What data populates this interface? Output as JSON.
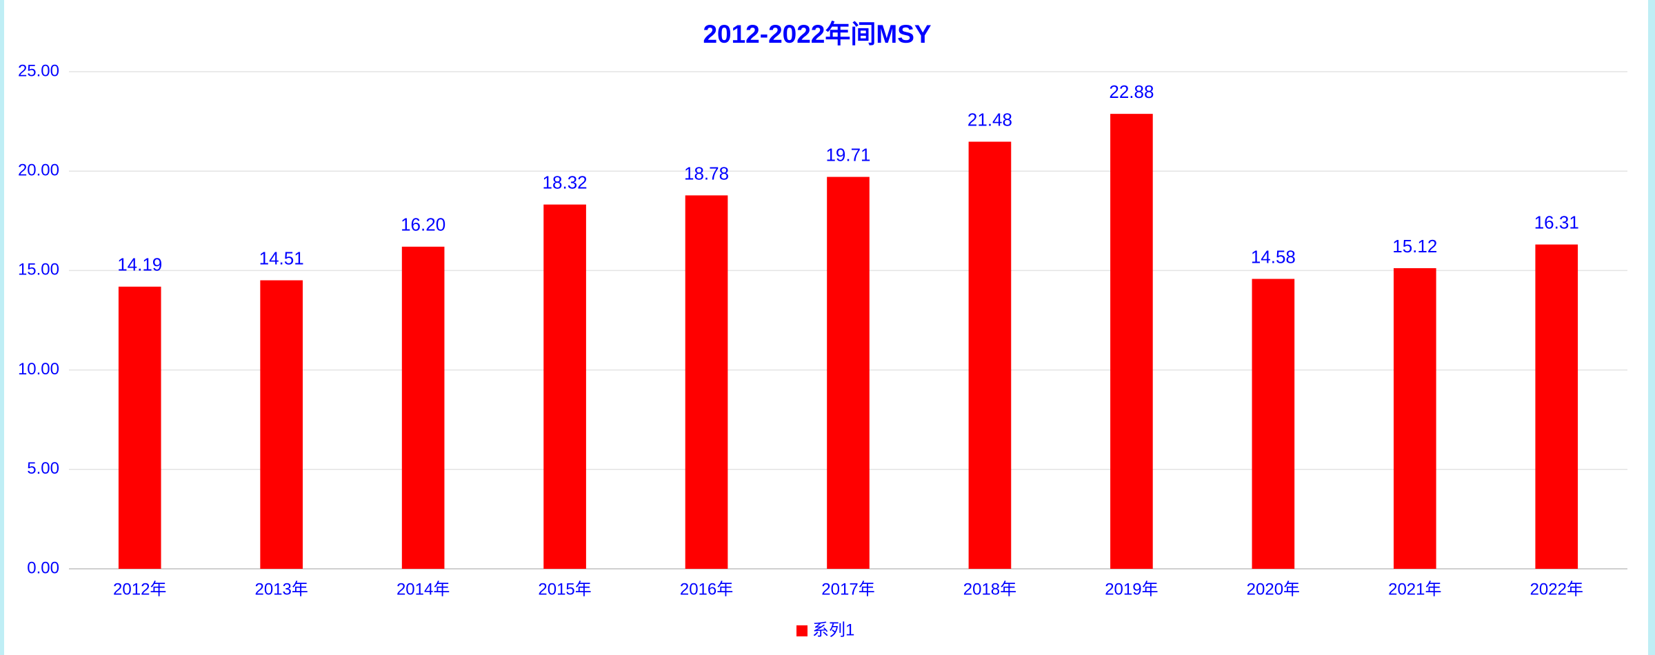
{
  "chart_data": {
    "type": "bar",
    "title": "2012-2022年间MSY",
    "categories": [
      "2012年",
      "2013年",
      "2014年",
      "2015年",
      "2016年",
      "2017年",
      "2018年",
      "2019年",
      "2020年",
      "2021年",
      "2022年"
    ],
    "series": [
      {
        "name": "系列1",
        "color": "#ff0000",
        "values": [
          14.19,
          14.51,
          16.2,
          18.32,
          18.78,
          19.71,
          21.48,
          22.88,
          14.58,
          15.12,
          16.31
        ],
        "value_labels": [
          "14.19",
          "14.51",
          "16.20",
          "18.32",
          "18.78",
          "19.71",
          "21.48",
          "22.88",
          "14.58",
          "15.12",
          "16.31"
        ]
      }
    ],
    "ylim": [
      0,
      25
    ],
    "yticks": [
      {
        "value": 0,
        "label": "0.00"
      },
      {
        "value": 5,
        "label": "5.00"
      },
      {
        "value": 10,
        "label": "10.00"
      },
      {
        "value": 15,
        "label": "15.00"
      },
      {
        "value": 20,
        "label": "20.00"
      },
      {
        "value": 25,
        "label": "25.00"
      }
    ],
    "grid": true,
    "legend": "bottom"
  }
}
